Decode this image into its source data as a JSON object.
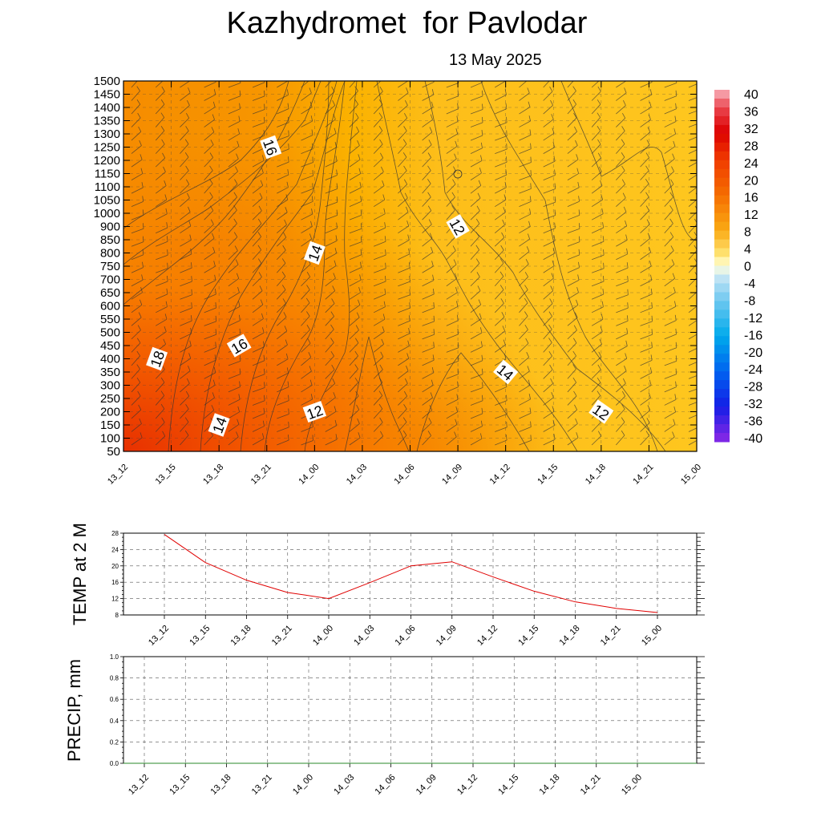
{
  "title": "Kazhydromet  for Pavlodar",
  "subtitle": "13 May 2025",
  "colors": {
    "temp_line": "#e00000",
    "precip_line": "#2a8a2a",
    "grid": "#555555",
    "contour": "#333333"
  },
  "time_labels": [
    "13_12",
    "13_15",
    "13_18",
    "13_21",
    "14_00",
    "14_03",
    "14_06",
    "14_09",
    "14_12",
    "14_15",
    "14_18",
    "14_21",
    "15_00"
  ],
  "chart_data": [
    {
      "type": "heatmap",
      "description_of_field": "temperature cross-section with isotherms and wind barbs",
      "x": [
        "13_12",
        "13_15",
        "13_18",
        "13_21",
        "14_00",
        "14_03",
        "14_06",
        "14_09",
        "14_12",
        "14_15",
        "14_18",
        "14_21",
        "15_00"
      ],
      "y": [
        50,
        100,
        150,
        200,
        250,
        300,
        350,
        400,
        450,
        500,
        550,
        600,
        650,
        700,
        750,
        800,
        850,
        900,
        1000,
        1050,
        1100,
        1150,
        1200,
        1250,
        1300,
        1350,
        1400,
        1450,
        1500
      ],
      "ylim": [
        50,
        1500
      ],
      "grid": true,
      "contour_labels": [
        {
          "value": "16",
          "x": "13_21",
          "y": 1250
        },
        {
          "value": "14",
          "x": "14_00",
          "y": 800
        },
        {
          "value": "12",
          "x": "14_09",
          "y": 900
        },
        {
          "value": "16",
          "x": "13_18",
          "y": 450
        },
        {
          "value": "18",
          "x": "13_15",
          "y": 400
        },
        {
          "value": "14",
          "x": "13_18",
          "y": 150
        },
        {
          "value": "12",
          "x": "14_00",
          "y": 200
        },
        {
          "value": "14",
          "x": "14_12",
          "y": 350
        },
        {
          "value": "12",
          "x": "14_18",
          "y": 200
        }
      ],
      "colorbar": {
        "labels": [
          "40",
          "36",
          "32",
          "28",
          "24",
          "20",
          "16",
          "12",
          "8",
          "4",
          "0",
          "-4",
          "-8",
          "-12",
          "-16",
          "-20",
          "-24",
          "-28",
          "-32",
          "-36",
          "-40"
        ],
        "range": [
          -40,
          40
        ]
      }
    },
    {
      "type": "line",
      "ylabel": "TEMP at 2 M",
      "x": [
        "13_12",
        "13_15",
        "13_18",
        "13_21",
        "14_00",
        "14_03",
        "14_06",
        "14_09",
        "14_12",
        "14_15",
        "14_18",
        "14_21",
        "15_00"
      ],
      "values": [
        27.7,
        20.8,
        16.5,
        13.5,
        12.0,
        15.9,
        20.0,
        21.0,
        17.3,
        13.8,
        11.2,
        9.6,
        8.6
      ],
      "ylim": [
        8,
        28
      ],
      "yticks": [
        "8",
        "12",
        "16",
        "20",
        "24",
        "28"
      ],
      "grid": true
    },
    {
      "type": "line",
      "ylabel": "PRECIP, mm",
      "x": [
        "13_12",
        "13_15",
        "13_18",
        "13_21",
        "14_00",
        "14_03",
        "14_06",
        "14_09",
        "14_12",
        "14_15",
        "14_18",
        "14_21",
        "15_00"
      ],
      "values": [
        0,
        0,
        0,
        0,
        0,
        0,
        0,
        0,
        0,
        0,
        0,
        0,
        0
      ],
      "ylim": [
        0.0,
        1.0
      ],
      "yticks": [
        "0.0",
        "0.2",
        "0.4",
        "0.6",
        "0.8",
        "1.0"
      ],
      "grid": true
    }
  ]
}
